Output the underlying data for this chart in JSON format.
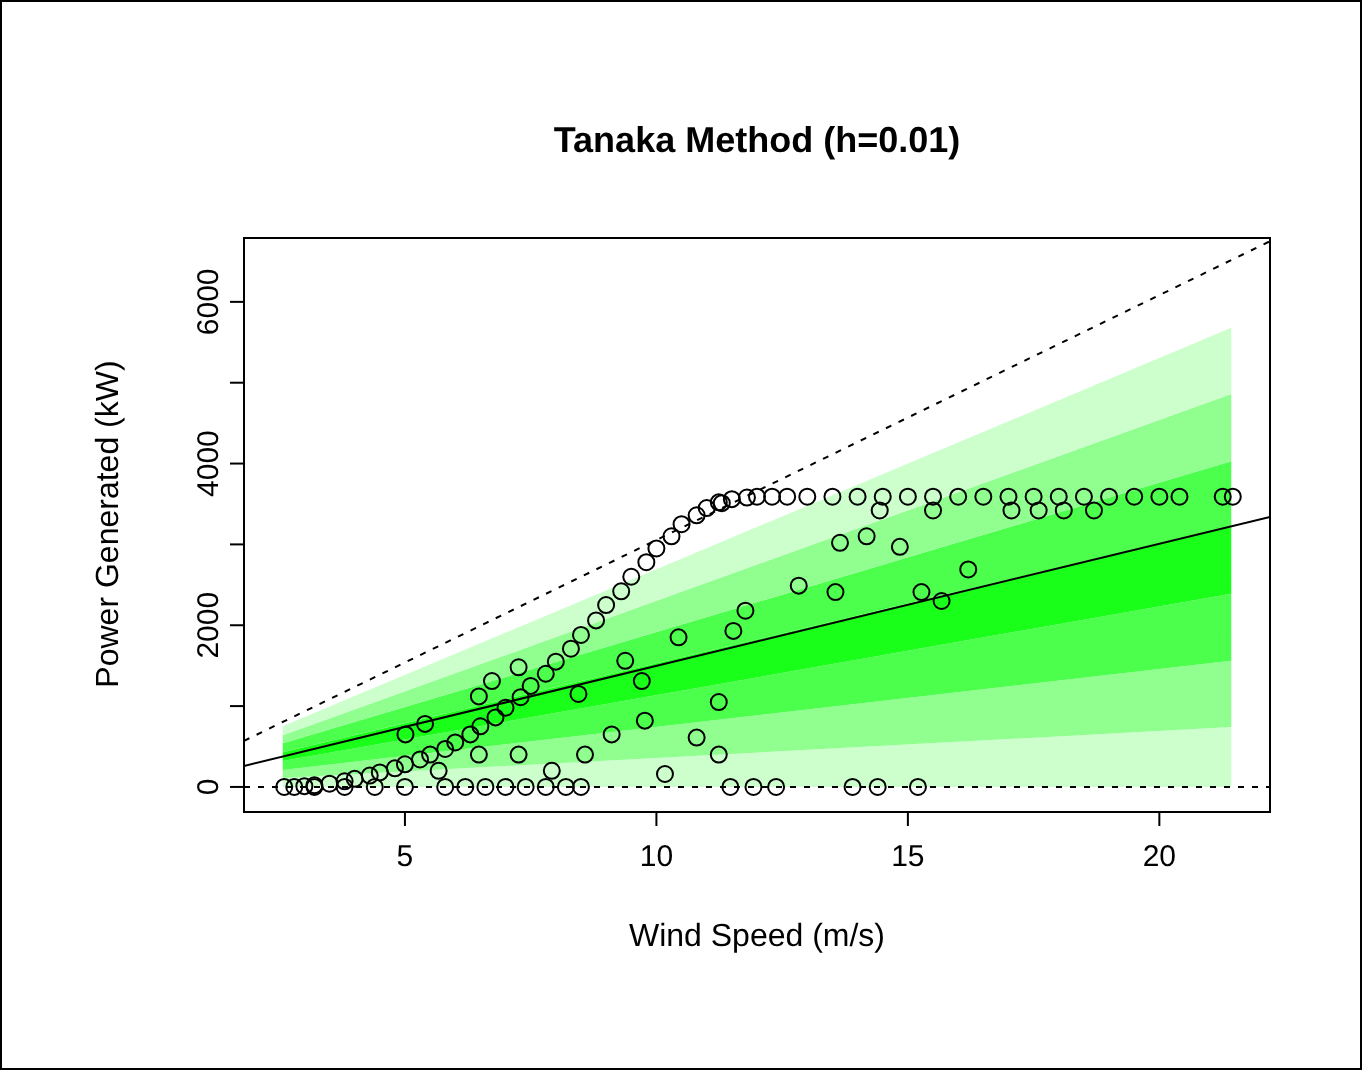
{
  "chart_data": {
    "type": "scatter",
    "title": "Tanaka Method (h=0.01)",
    "xlabel": "Wind Speed (m/s)",
    "ylabel": "Power Generated (kW)",
    "xlim": [
      1.8,
      22.2
    ],
    "xticks": [
      5,
      10,
      15,
      20
    ],
    "ylim": [
      -310,
      6790
    ],
    "yticks": [
      0,
      {
        "value": 1000,
        "label": null
      },
      2000,
      {
        "value": 3000,
        "label": null
      },
      4000,
      {
        "value": 5000,
        "label": null
      },
      6000
    ],
    "grid": false,
    "legend": false,
    "stacked": true,
    "ref_lines": [
      {
        "axis": "y",
        "value": 0,
        "color": "#000000",
        "line_style": "dotted"
      }
    ],
    "series": [
      {
        "type": "area",
        "color": "#ccffcc",
        "x": [
          2.57,
          21.43
        ],
        "values": [
          110,
          740
        ]
      },
      {
        "type": "area",
        "color": "#90ff90",
        "x": [
          2.57,
          21.43
        ],
        "values": [
          100,
          820
        ]
      },
      {
        "type": "area",
        "color": "#4dff4d",
        "x": [
          2.57,
          21.43
        ],
        "values": [
          110,
          830
        ]
      },
      {
        "type": "area",
        "color": "#1aff1a",
        "x": [
          2.57,
          21.43
        ],
        "values": [
          110,
          830
        ]
      },
      {
        "type": "area",
        "color": "#4dff4d",
        "x": [
          2.57,
          21.43
        ],
        "values": [
          110,
          810
        ]
      },
      {
        "type": "area",
        "color": "#90ff90",
        "x": [
          2.57,
          21.43
        ],
        "values": [
          100,
          830
        ]
      },
      {
        "type": "area",
        "color": "#ccffcc",
        "x": [
          2.57,
          21.43
        ],
        "values": [
          110,
          820
        ]
      },
      {
        "type": "line",
        "color": "#000000",
        "line_style": "solid",
        "x": [
          1.8,
          22.2
        ],
        "values": [
          260,
          3340
        ]
      },
      {
        "type": "line",
        "color": "#000000",
        "line_style": "dotted",
        "x": [
          1.8,
          22.2
        ],
        "values": [
          570,
          6750
        ]
      },
      {
        "color": "#000000",
        "marker": "circle",
        "x": [
          2.6,
          2.8,
          3,
          3.2,
          3.5,
          3.8,
          4,
          4.3,
          4.5,
          4.8,
          5,
          5.3,
          5.5,
          5.8,
          6,
          6.3,
          6.5,
          6.8,
          7,
          7.3,
          7.5,
          7.8,
          8,
          8.3,
          8.5,
          8.8,
          9,
          9.3,
          9.5,
          9.8,
          10,
          10.3,
          10.5,
          10.8,
          11,
          11.3,
          11.5,
          11.8,
          12,
          12.3,
          12.6,
          13,
          13.5,
          14,
          14.5,
          15,
          15.5,
          16,
          16.5,
          17,
          17.5,
          18,
          18.5,
          19,
          19.5,
          20,
          20.4,
          21.26,
          21.46,
          3.2,
          3.8,
          4.4,
          5,
          5.8,
          6.2,
          6.6,
          7,
          7.4,
          7.8,
          8.2,
          8.5,
          11.47,
          11.93,
          12.38,
          13.9,
          14.4,
          15.2,
          11.24,
          13.65,
          14.18,
          14.84,
          16.2,
          12.83,
          13.56,
          15.27,
          15.67,
          11.77,
          11.53,
          11.24,
          10.8,
          11.24,
          15.5,
          17.06,
          17.6,
          18.1,
          18.7,
          14.44,
          9.77,
          9.11,
          8.58,
          10.17,
          9.71,
          10.44,
          9.38,
          8.45,
          7.92,
          7.26,
          6.47,
          5.67,
          6.73,
          6.47,
          7.26,
          5.01,
          5.4
        ],
        "values": [
          0,
          0,
          10,
          20,
          40,
          70,
          100,
          140,
          180,
          230,
          280,
          340,
          400,
          470,
          550,
          650,
          750,
          860,
          980,
          1110,
          1250,
          1400,
          1550,
          1710,
          1880,
          2060,
          2250,
          2420,
          2600,
          2780,
          2950,
          3100,
          3250,
          3360,
          3450,
          3510,
          3560,
          3580,
          3590,
          3590,
          3590,
          3590,
          3590,
          3590,
          3590,
          3590,
          3590,
          3590,
          3590,
          3590,
          3590,
          3590,
          3590,
          3590,
          3590,
          3590,
          3590,
          3590,
          3590,
          0,
          0,
          0,
          0,
          0,
          0,
          0,
          0,
          0,
          0,
          0,
          0,
          0,
          0,
          0,
          0,
          0,
          0,
          3520,
          3020,
          3100,
          2970,
          2690,
          2490,
          2410,
          2410,
          2300,
          2180,
          1930,
          1050,
          610,
          400,
          3420,
          3420,
          3420,
          3420,
          3420,
          3420,
          820,
          650,
          400,
          160,
          1310,
          1850,
          1560,
          1150,
          200,
          400,
          400,
          200,
          1310,
          1120,
          1480,
          650,
          780
        ]
      }
    ]
  }
}
